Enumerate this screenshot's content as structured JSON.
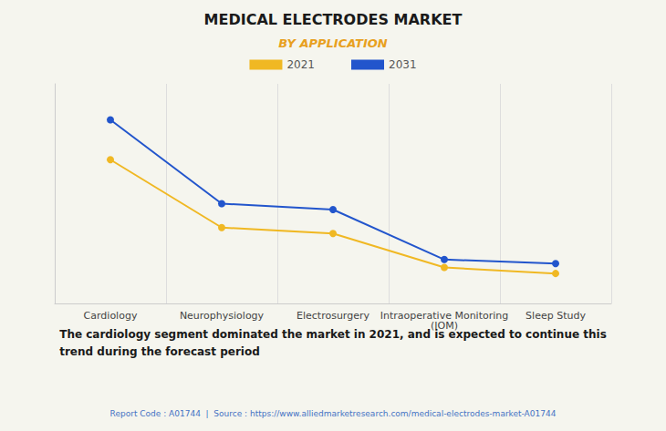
{
  "chart_data": {
    "type": "line",
    "title": "MEDICAL ELECTRODES MARKET",
    "subtitle": "BY APPLICATION",
    "categories": [
      "Cardiology",
      "Neurophysiology",
      "Electrosurgery",
      "Intraoperative Monitoring\n(IOM)",
      "Sleep Study"
    ],
    "series": [
      {
        "name": "2021",
        "color": "#F0B823",
        "values": [
          72,
          38,
          35,
          18,
          15
        ]
      },
      {
        "name": "2031",
        "color": "#2255CC",
        "values": [
          92,
          50,
          47,
          22,
          20
        ]
      }
    ],
    "ylim": [
      0,
      110
    ],
    "grid": true,
    "legend": "top",
    "tick_labels": "x",
    "marker": "circle",
    "annotation": "The cardiology segment dominated the market in 2021, and is expected to continue this\ntrend during the forecast period",
    "footer": "Report Code : A01744  |  Source : https://www.alliedmarketresearch.com/medical-electrodes-market-A01744"
  }
}
